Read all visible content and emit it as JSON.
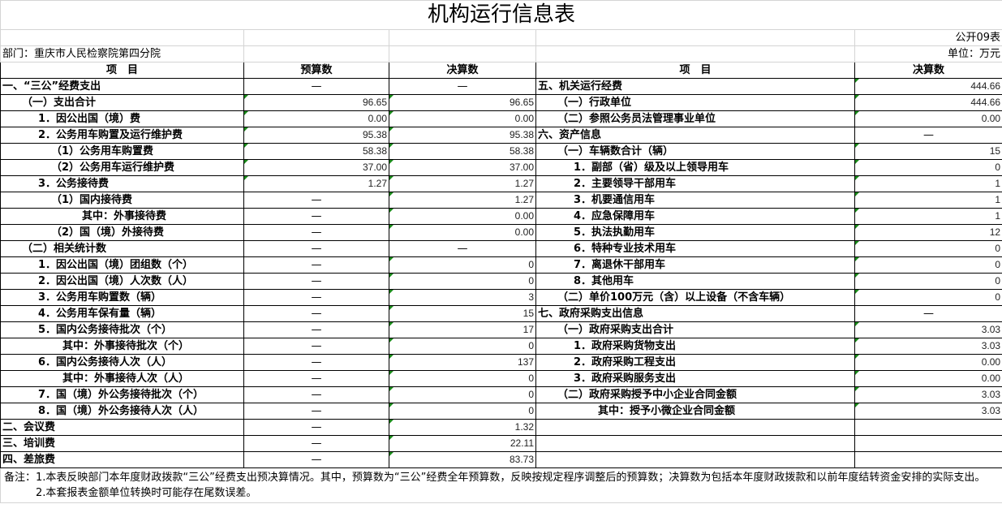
{
  "title": "机构运行信息表",
  "table_no": "公开09表",
  "department": "部门：重庆市人民检察院第四分院",
  "unit": "单位：万元",
  "headers": {
    "item": "项　目",
    "budget": "预算数",
    "final": "决算数",
    "item_right": "项　目",
    "final_right": "决算数"
  },
  "left_rows": [
    {
      "label": "一、“三公”经费支出",
      "level": 0,
      "budget": "—",
      "final": "—"
    },
    {
      "label": "（一）支出合计",
      "level": 1,
      "budget": "96.65",
      "final": "96.65"
    },
    {
      "label": "1．因公出国（境）费",
      "level": 2,
      "budget": "0.00",
      "final": "0.00"
    },
    {
      "label": "2．公务用车购置及运行维护费",
      "level": 2,
      "budget": "95.38",
      "final": "95.38"
    },
    {
      "label": "（1）公务用车购置费",
      "level": 3,
      "budget": "58.38",
      "final": "58.38"
    },
    {
      "label": "（2）公务用车运行维护费",
      "level": 3,
      "budget": "37.00",
      "final": "37.00"
    },
    {
      "label": "3．公务接待费",
      "level": 2,
      "budget": "1.27",
      "final": "1.27"
    },
    {
      "label": "（1）国内接待费",
      "level": 3,
      "budget": "—",
      "final": "1.27"
    },
    {
      "label": "其中：外事接待费",
      "level": 5,
      "budget": "—",
      "final": "0.00"
    },
    {
      "label": "（2）国（境）外接待费",
      "level": 3,
      "budget": "—",
      "final": "0.00"
    },
    {
      "label": "（二）相关统计数",
      "level": 1,
      "budget": "—",
      "final": "—"
    },
    {
      "label": "1．因公出国（境）团组数（个）",
      "level": 2,
      "budget": "—",
      "final": "0"
    },
    {
      "label": "2．因公出国（境）人次数（人）",
      "level": 2,
      "budget": "—",
      "final": "0"
    },
    {
      "label": "3．公务用车购置数（辆）",
      "level": 2,
      "budget": "—",
      "final": "3"
    },
    {
      "label": "4．公务用车保有量（辆）",
      "level": 2,
      "budget": "—",
      "final": "15"
    },
    {
      "label": "5．国内公务接待批次（个）",
      "level": 2,
      "budget": "—",
      "final": "17"
    },
    {
      "label": "其中：外事接待批次（个）",
      "level": 4,
      "budget": "—",
      "final": "0"
    },
    {
      "label": "6．国内公务接待人次（人）",
      "level": 2,
      "budget": "—",
      "final": "137"
    },
    {
      "label": "其中：外事接待人次（人）",
      "level": 4,
      "budget": "—",
      "final": "0"
    },
    {
      "label": "7．国（境）外公务接待批次（个）",
      "level": 2,
      "budget": "—",
      "final": "0"
    },
    {
      "label": "8．国（境）外公务接待人次（人）",
      "level": 2,
      "budget": "—",
      "final": "0"
    },
    {
      "label": "二、会议费",
      "level": 0,
      "budget": "—",
      "final": "1.32"
    },
    {
      "label": "三、培训费",
      "level": 0,
      "budget": "—",
      "final": "22.11"
    },
    {
      "label": "四、差旅费",
      "level": 0,
      "budget": "—",
      "final": "83.73"
    }
  ],
  "right_rows": [
    {
      "label": "五、机关运行经费",
      "level": 0,
      "final": "444.66"
    },
    {
      "label": "（一）行政单位",
      "level": 1,
      "final": "444.66"
    },
    {
      "label": "（二）参照公务员法管理事业单位",
      "level": 1,
      "final": "0.00"
    },
    {
      "label": "六、资产信息",
      "level": 0,
      "final": "—"
    },
    {
      "label": "（一）车辆数合计（辆）",
      "level": 1,
      "final": "15"
    },
    {
      "label": "1．副部（省）级及以上领导用车",
      "level": 2,
      "final": "0"
    },
    {
      "label": "2．主要领导干部用车",
      "level": 2,
      "final": "1"
    },
    {
      "label": "3．机要通信用车",
      "level": 2,
      "final": "1"
    },
    {
      "label": "4．应急保障用车",
      "level": 2,
      "final": "1"
    },
    {
      "label": "5．执法执勤用车",
      "level": 2,
      "final": "12"
    },
    {
      "label": "6．特种专业技术用车",
      "level": 2,
      "final": "0"
    },
    {
      "label": "7．离退休干部用车",
      "level": 2,
      "final": "0"
    },
    {
      "label": "8．其他用车",
      "level": 2,
      "final": "0"
    },
    {
      "label": "（二）单价100万元（含）以上设备（不含车辆）",
      "level": 1,
      "final": "0"
    },
    {
      "label": "七、政府采购支出信息",
      "level": 0,
      "final": "—"
    },
    {
      "label": "（一）政府采购支出合计",
      "level": 1,
      "final": "3.03"
    },
    {
      "label": "1．政府采购货物支出",
      "level": 2,
      "final": "3.03"
    },
    {
      "label": "2．政府采购工程支出",
      "level": 2,
      "final": "0.00"
    },
    {
      "label": "3．政府采购服务支出",
      "level": 2,
      "final": "0.00"
    },
    {
      "label": "（二）政府采购授予中小企业合同金额",
      "level": 1,
      "final": "3.03"
    },
    {
      "label": "其中：授予小微企业合同金额",
      "level": 4,
      "final": "3.03"
    }
  ],
  "notes": {
    "line1": "备注：1.本表反映部门本年度财政拨款“三公”经费支出预决算情况。其中，预算数为“三公”经费全年预算数，反映按规定程序调整后的预算数；决算数为包括本年度财政拨款和以前年度结转资金安排的实际支出。",
    "line2": "　　　2.本套报表金额单位转换时可能存在尾数误差。"
  }
}
